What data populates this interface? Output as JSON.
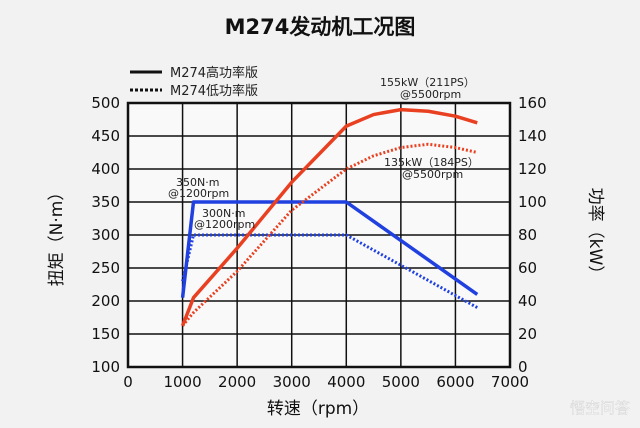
{
  "chart_data": {
    "type": "line",
    "title": "M274发动机工况图",
    "xlabel": "转速（rpm）",
    "ylabel_left": "扭矩（N·m）",
    "ylabel_right": "功率（kW）",
    "xlim": [
      0,
      7000
    ],
    "ylim_left": [
      100,
      500
    ],
    "ylim_right": [
      0,
      160
    ],
    "x_ticks": [
      "0",
      "1000",
      "2000",
      "3000",
      "4000",
      "5000",
      "6000",
      "7000"
    ],
    "y_left_ticks": [
      "100",
      "150",
      "200",
      "250",
      "300",
      "350",
      "400",
      "450",
      "500"
    ],
    "y_right_ticks": [
      "0",
      "20",
      "40",
      "60",
      "80",
      "100",
      "120",
      "140",
      "160"
    ],
    "grid": true,
    "legend": {
      "position": "top-left",
      "entries": [
        {
          "label": "M274高功率版",
          "style": "solid"
        },
        {
          "label": "M274低功率版",
          "style": "dotted"
        }
      ]
    },
    "series": [
      {
        "variant": "M274高功率版",
        "quantity": "torque",
        "axis": "left",
        "color": "#2040e0",
        "style": "solid",
        "x": [
          1000,
          1200,
          4000,
          6400
        ],
        "y": [
          205,
          350,
          350,
          210
        ]
      },
      {
        "variant": "M274低功率版",
        "quantity": "torque",
        "axis": "left",
        "color": "#2040e0",
        "style": "dotted",
        "x": [
          1000,
          1200,
          4000,
          6400
        ],
        "y": [
          230,
          300,
          300,
          190
        ]
      },
      {
        "variant": "M274高功率版",
        "quantity": "power",
        "axis": "right",
        "color": "#e84020",
        "style": "solid",
        "x": [
          1000,
          1200,
          2000,
          3000,
          4000,
          4500,
          5000,
          5500,
          6000,
          6400
        ],
        "y": [
          25,
          42,
          72,
          112,
          146,
          153,
          156,
          155,
          152,
          148
        ]
      },
      {
        "variant": "M274低功率版",
        "quantity": "power",
        "axis": "right",
        "color": "#e84020",
        "style": "dotted",
        "x": [
          1000,
          1200,
          2000,
          3000,
          4000,
          4500,
          5000,
          5500,
          6000,
          6400
        ],
        "y": [
          25,
          33,
          58,
          95,
          120,
          128,
          133,
          135,
          133,
          130
        ]
      }
    ],
    "annotations": [
      {
        "lines": [
          "155kW（211PS）",
          "@5500rpm"
        ]
      },
      {
        "lines": [
          "135kW（184PS）",
          "@5500rpm"
        ]
      },
      {
        "lines": [
          "350N·m",
          "@1200rpm"
        ]
      },
      {
        "lines": [
          "300N·m",
          "@1200rpm"
        ]
      }
    ]
  },
  "watermark": "悟空问答"
}
